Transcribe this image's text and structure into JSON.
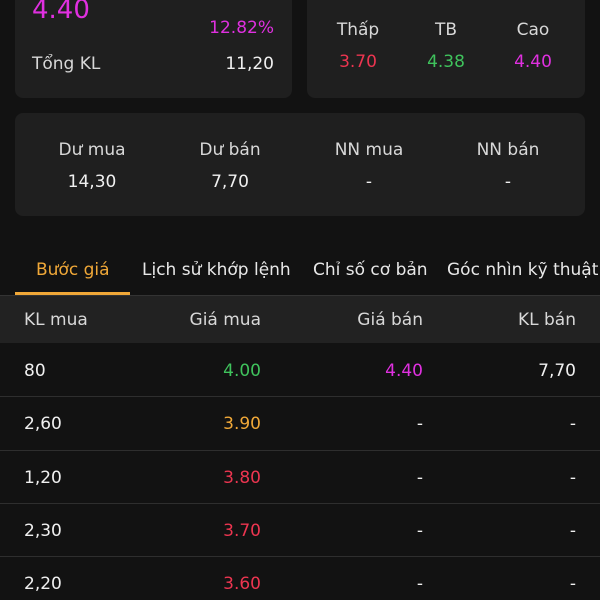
{
  "summary": {
    "price": "4.40",
    "change_pct": "12.82%",
    "volume_label": "Tổng KL",
    "volume": "11,20"
  },
  "range": [
    {
      "label": "Thấp",
      "value": "3.70"
    },
    {
      "label": "TB",
      "value": "4.38"
    },
    {
      "label": "Cao",
      "value": "4.40"
    }
  ],
  "foreign": [
    {
      "label": "Dư mua",
      "value": "14,30"
    },
    {
      "label": "Dư bán",
      "value": "7,70"
    },
    {
      "label": "NN mua",
      "value": "-"
    },
    {
      "label": "NN bán",
      "value": "-"
    }
  ],
  "tabs": [
    "Bước giá",
    "Lịch sử khớp lệnh",
    "Chỉ số cơ bản",
    "Góc nhìn kỹ thuật"
  ],
  "table": {
    "headers": [
      "KL mua",
      "Giá mua",
      "Giá bán",
      "KL bán"
    ],
    "rows": [
      [
        "80",
        "4.00",
        "4.40",
        "7,70"
      ],
      [
        "2,60",
        "3.90",
        "-",
        "-"
      ],
      [
        "1,20",
        "3.80",
        "-",
        "-"
      ],
      [
        "2,30",
        "3.70",
        "-",
        "-"
      ],
      [
        "2,20",
        "3.60",
        "-",
        "-"
      ]
    ]
  }
}
